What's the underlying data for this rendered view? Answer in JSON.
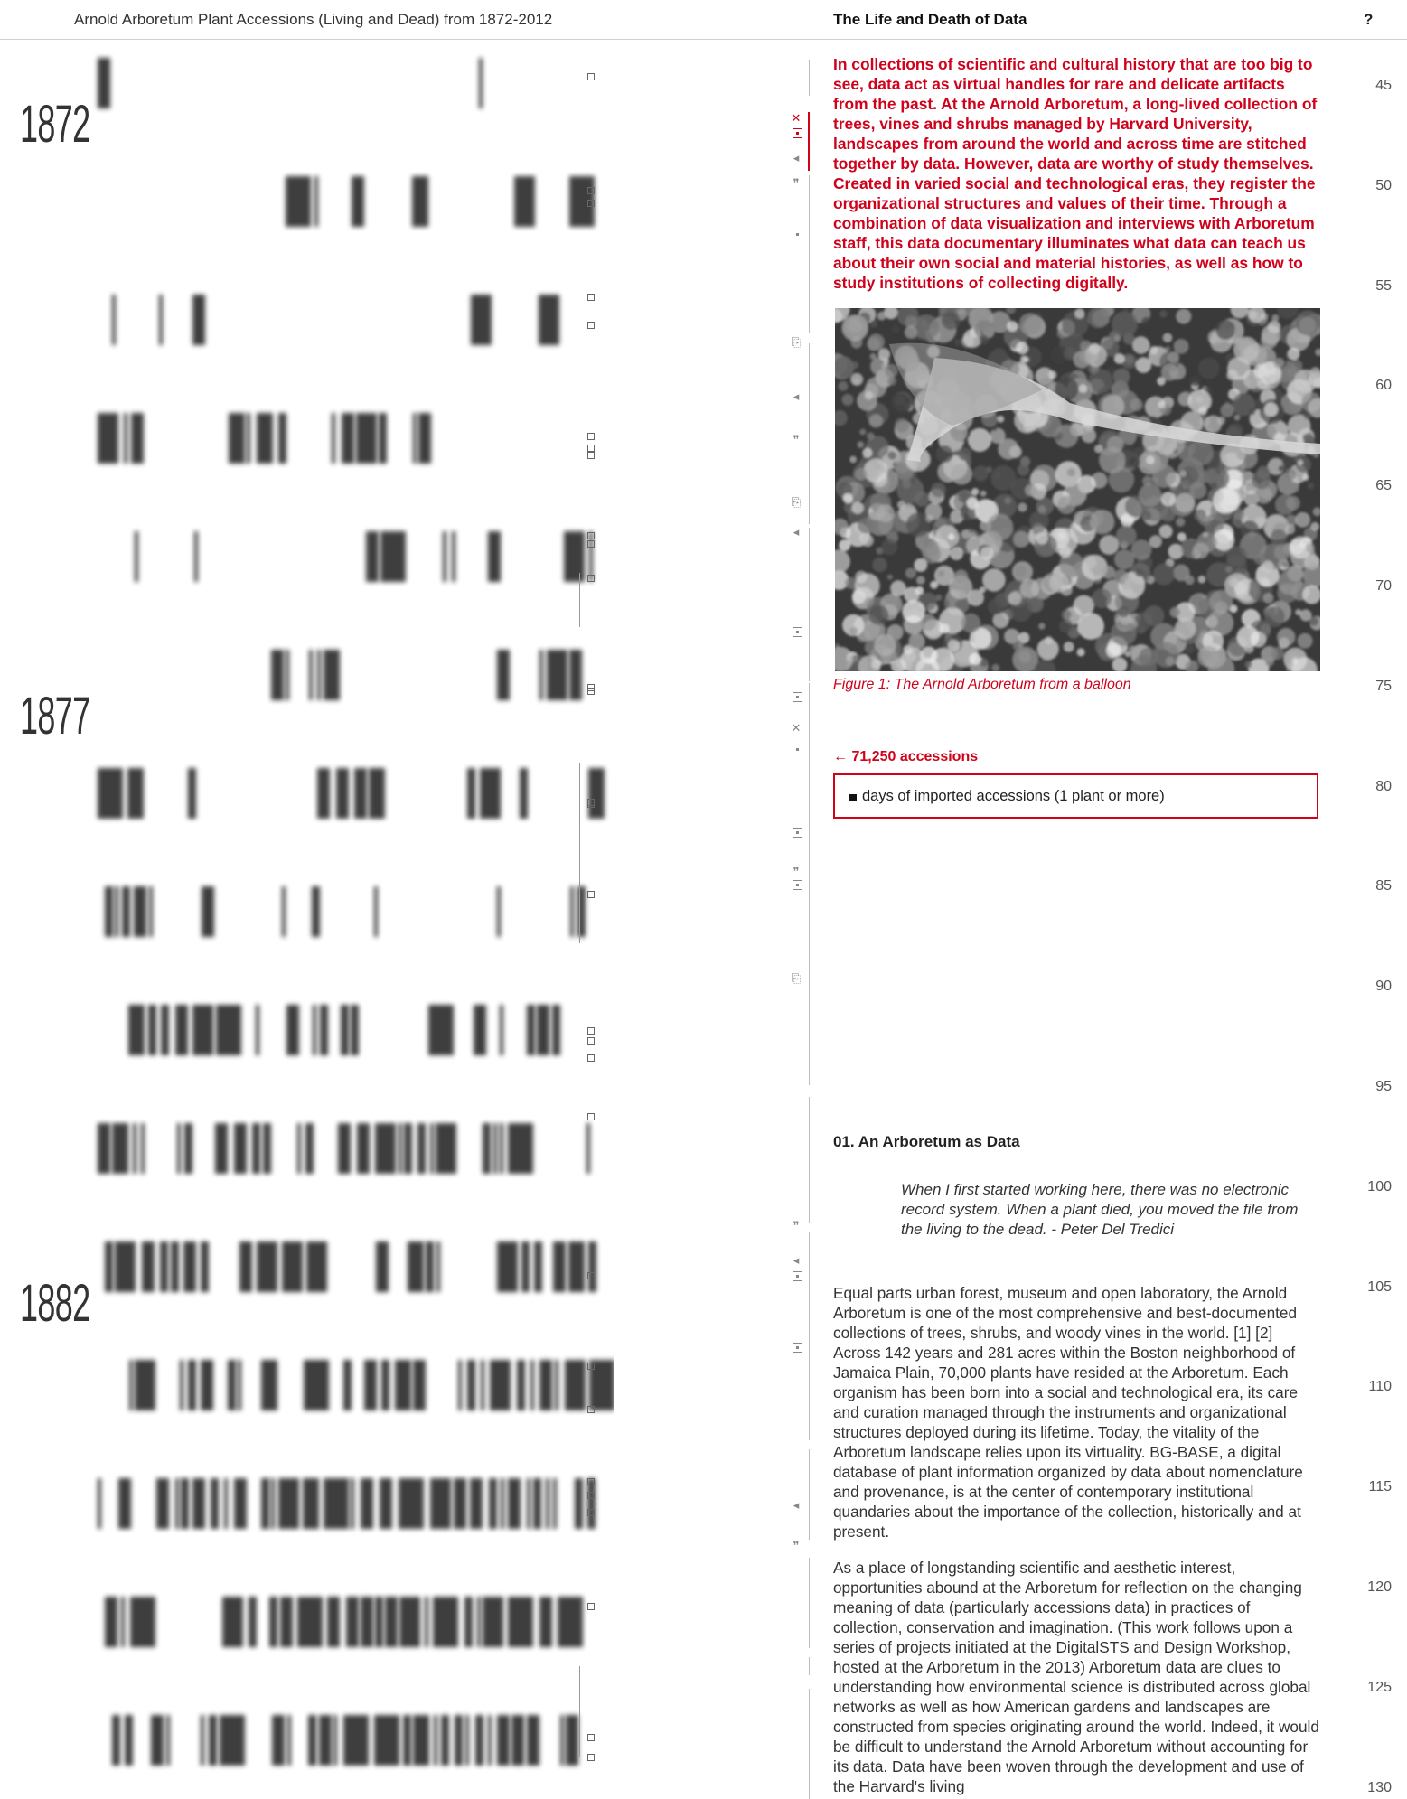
{
  "header": {
    "viz_title": "Arnold Arboretum Plant Accessions (Living and Dead) from 1872-2012",
    "doc_title": "The Life and Death of Data",
    "help_label": "?"
  },
  "viz": {
    "year_labels": [
      "1872",
      "1877",
      "1882"
    ]
  },
  "intro": "In collections of scientific and cultural history that are too big to see, data act as virtual handles for rare and delicate artifacts from the past. At the Arnold Arboretum, a long-lived collection of trees, vines and shrubs managed by Harvard University, landscapes from around the world and across time are stitched together by data. However, data are worthy of study themselves. Created in varied social and technological eras, they register the organizational structures and values of their time. Through a combination of data visualization and interviews with Arboretum staff, this data documentary illuminates what data can teach us about their own social and material histories, as well as how to study institutions of collecting digitally.",
  "figure": {
    "caption": "Figure 1: The Arnold Arboretum from a balloon"
  },
  "accessions": {
    "count_label": "← 71,250 accessions",
    "legend_text": "days of imported accessions (1 plant or more)"
  },
  "section": {
    "title": "01. An Arboretum as Data",
    "quote": "When I first started working here, there was no electronic record system. When a plant died, you moved the file from the living to the dead. - Peter Del Tredici",
    "para1": "Equal parts urban forest, museum and open laboratory, the Arnold Arboretum is one of the most comprehensive and best-documented collections of trees, shrubs, and woody vines in the world. [1] [2] Across 142 years and 281 acres within the Boston neighborhood of Jamaica Plain, 70,000 plants have resided at the Arboretum. Each organism has been born into a social and technological era, its care and curation managed through the instruments and organizational structures deployed during its lifetime. Today, the vitality of the Arboretum landscape relies upon its virtuality. BG-BASE, a digital database of plant information organized by data about nomenclature and provenance, is at the center of contemporary institutional quandaries about the importance of the collection, historically and at present.",
    "para2": "As a place of longstanding scientific and aesthetic interest, opportunities abound at the Arboretum for reflection on the changing meaning of data (particularly accessions data) in practices of collection, conservation and imagination. (This work follows upon a series of projects initiated at the DigitalSTS and Design Workshop, hosted at the Arboretum in the 2013) Arboretum data are clues to understanding how environmental science is distributed across global networks as well as how American gardens and landscapes are constructed from species originating around the world. Indeed, it would be difficult to understand the Arnold Arboretum without accounting for its data. Data have been woven through the development and use of the Harvard's living"
  },
  "line_numbers": [
    "45",
    "50",
    "55",
    "60",
    "65",
    "70",
    "75",
    "80",
    "85",
    "90",
    "95",
    "100",
    "105",
    "110",
    "115",
    "120",
    "125",
    "130"
  ]
}
